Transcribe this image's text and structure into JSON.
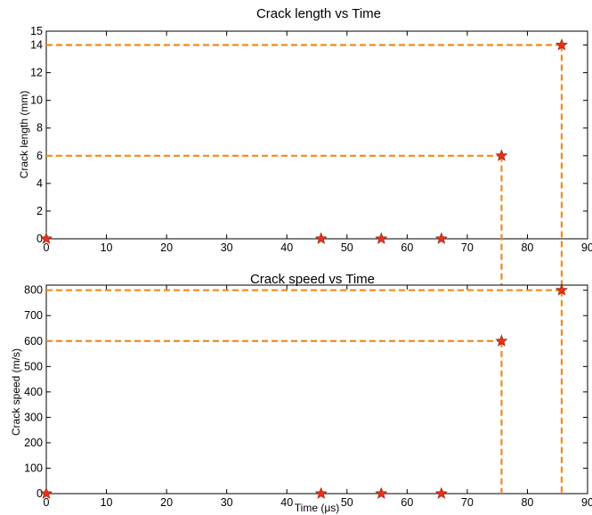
{
  "chart_data": [
    {
      "type": "scatter",
      "title": "Crack length vs Time",
      "xlabel": "",
      "ylabel": "Crack length (mm)",
      "xlim": [
        0,
        90
      ],
      "ylim": [
        0,
        15
      ],
      "xticks": [
        "0",
        "10",
        "20",
        "30",
        "40",
        "50",
        "60",
        "70",
        "80",
        "90"
      ],
      "yticks": [
        "0",
        "2",
        "4",
        "6",
        "8",
        "10",
        "12",
        "14",
        "15"
      ],
      "x": [
        0,
        45.7,
        55.7,
        65.7,
        75.7,
        85.7
      ],
      "y": [
        0,
        0,
        0,
        0,
        6,
        14
      ],
      "marker": "star",
      "marker_color": "#e8311a",
      "guide_color": "#f28a1b",
      "guides": [
        {
          "x": 75.7,
          "y": 6
        },
        {
          "x": 85.7,
          "y": 14
        }
      ],
      "grid": false
    },
    {
      "type": "scatter",
      "title": "Crack speed vs Time",
      "xlabel": "Time (μs)",
      "ylabel": "Crack speed (m/s)",
      "xlim": [
        0,
        90
      ],
      "ylim": [
        0,
        820
      ],
      "xticks": [
        "0",
        "10",
        "20",
        "30",
        "40",
        "50",
        "60",
        "70",
        "80",
        "90"
      ],
      "yticks": [
        "0",
        "100",
        "200",
        "300",
        "400",
        "500",
        "600",
        "700",
        "800"
      ],
      "x": [
        0,
        45.7,
        55.7,
        65.7,
        75.7,
        85.7
      ],
      "y": [
        0,
        0,
        0,
        0,
        600,
        800
      ],
      "marker": "star",
      "marker_color": "#e8311a",
      "guide_color": "#f28a1b",
      "guides": [
        {
          "x": 75.7,
          "y": 600
        },
        {
          "x": 85.7,
          "y": 800
        }
      ],
      "grid": false
    }
  ]
}
